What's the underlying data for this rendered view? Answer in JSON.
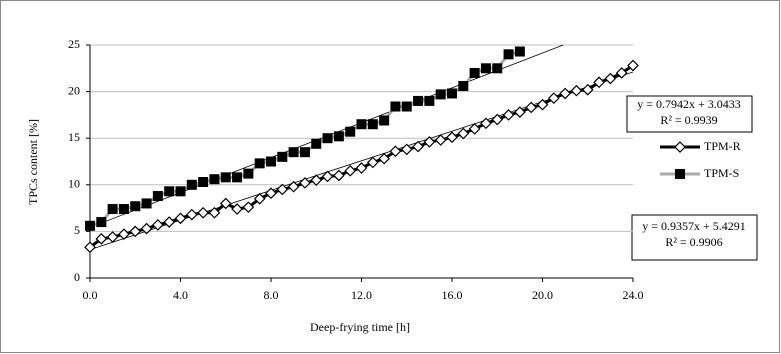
{
  "chart_data": {
    "type": "line",
    "xlabel": "Deep-frying time [h]",
    "ylabel": "TPCs content [%]",
    "xlim": [
      0,
      24
    ],
    "ylim": [
      0,
      25
    ],
    "xticks": [
      {
        "value": 0,
        "label": "0.0"
      },
      {
        "value": 4,
        "label": "4.0"
      },
      {
        "value": 8,
        "label": "8.0"
      },
      {
        "value": 12,
        "label": "12.0"
      },
      {
        "value": 16,
        "label": "16.0"
      },
      {
        "value": 20,
        "label": "20.0"
      },
      {
        "value": 24,
        "label": "24.0"
      }
    ],
    "yticks": [
      0,
      5,
      10,
      15,
      20,
      25
    ],
    "grid": true,
    "legend": "right",
    "series": [
      {
        "name": "TPM-R",
        "color": "#000000",
        "marker": "diamond",
        "marker_color": "#ffffff",
        "x": [
          0,
          0.5,
          1,
          1.5,
          2,
          2.5,
          3,
          3.5,
          4,
          4.5,
          5,
          5.5,
          6,
          6.5,
          7,
          7.5,
          8,
          8.5,
          9,
          9.5,
          10,
          10.5,
          11,
          11.5,
          12,
          12.5,
          13,
          13.5,
          14,
          14.5,
          15,
          15.5,
          16,
          16.5,
          17,
          17.5,
          18,
          18.5,
          19,
          19.5,
          20,
          20.5,
          21,
          21.5,
          22,
          22.5,
          23,
          23.5,
          24
        ],
        "values": [
          3.3,
          4.2,
          4.4,
          4.7,
          5.0,
          5.3,
          5.7,
          6.0,
          6.4,
          6.8,
          7.0,
          7.0,
          8.0,
          7.4,
          7.6,
          8.5,
          9.1,
          9.5,
          9.8,
          10.2,
          10.5,
          10.9,
          11.0,
          11.5,
          11.8,
          12.4,
          12.8,
          13.6,
          13.8,
          14.1,
          14.6,
          14.8,
          15.1,
          15.5,
          16.0,
          16.6,
          17.0,
          17.5,
          17.8,
          18.3,
          18.6,
          19.3,
          19.8,
          20.1,
          20.2,
          21.0,
          21.4,
          22.0,
          22.8
        ]
      },
      {
        "name": "TPM-S",
        "color": "#aaaaaa",
        "marker": "square",
        "marker_color": "#000000",
        "x": [
          0,
          0.5,
          1,
          1.5,
          2,
          2.5,
          3,
          3.5,
          4,
          4.5,
          5,
          5.5,
          6,
          6.5,
          7,
          7.5,
          8,
          8.5,
          9,
          9.5,
          10,
          10.5,
          11,
          11.5,
          12,
          12.5,
          13,
          13.5,
          14,
          14.5,
          15,
          15.5,
          16,
          16.5,
          17,
          17.5,
          18,
          18.5,
          19
        ],
        "values": [
          5.6,
          6.0,
          7.4,
          7.4,
          7.7,
          8.0,
          8.8,
          9.3,
          9.3,
          10.0,
          10.3,
          10.6,
          10.8,
          10.8,
          11.2,
          12.3,
          12.5,
          13.0,
          13.5,
          13.5,
          14.4,
          15.0,
          15.2,
          15.7,
          16.5,
          16.5,
          16.9,
          18.4,
          18.4,
          19.0,
          19.0,
          19.7,
          19.8,
          20.6,
          22.0,
          22.5,
          22.5,
          24.0,
          24.3
        ]
      }
    ],
    "trendlines": [
      {
        "equation": "y = 0.7942x + 3.0433",
        "r2": "R² = 0.9939",
        "slope": 0.7942,
        "intercept": 3.0433
      },
      {
        "equation": "y = 0.9357x + 5.4291",
        "r2": "R² = 0.9906",
        "slope": 0.9357,
        "intercept": 5.4291
      }
    ]
  }
}
